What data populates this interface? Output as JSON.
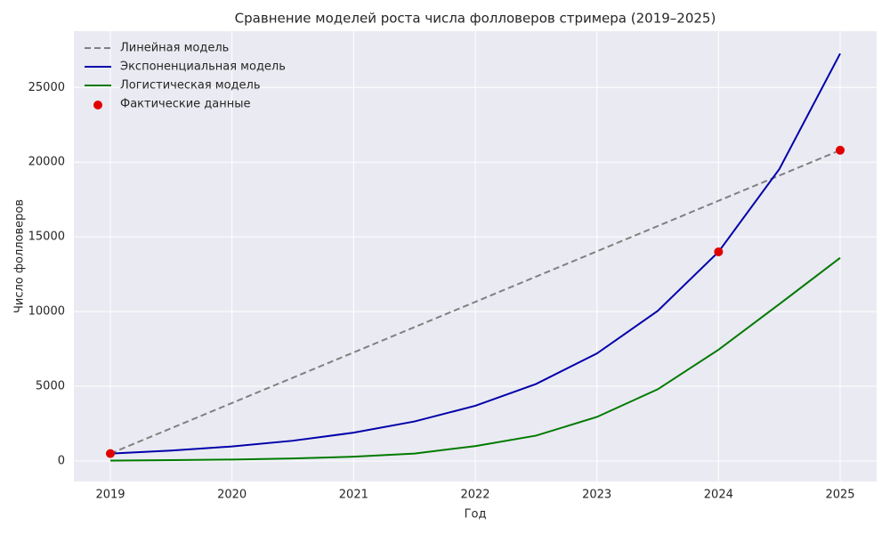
{
  "chart_data": {
    "type": "line",
    "title": "Сравнение моделей роста числа фолловеров стримера (2019–2025)",
    "x_label": "Год",
    "y_label": "Число фолловеров",
    "xlim": [
      2018.7,
      2025.3
    ],
    "ylim": [
      -1370,
      28770
    ],
    "xticks": [
      2019,
      2020,
      2021,
      2022,
      2023,
      2024,
      2025
    ],
    "yticks": [
      0,
      5000,
      10000,
      15000,
      20000,
      25000
    ],
    "grid": true,
    "legend": "upper left",
    "series": [
      {
        "name": "Линейная модель",
        "color": "#808080",
        "style": "dashed",
        "x": [
          2019,
          2025
        ],
        "values": [
          500,
          20800
        ]
      },
      {
        "name": "Экспоненциальная модель",
        "color": "#0000aa",
        "style": "solid",
        "x": [
          2019,
          2019.5,
          2020,
          2020.5,
          2021,
          2021.5,
          2022,
          2022.5,
          2023,
          2023.5,
          2024,
          2024.5,
          2025
        ],
        "values": [
          500,
          698,
          974,
          1359,
          1897,
          2647,
          3695,
          5157,
          7197,
          10045,
          14000,
          19540,
          27270
        ]
      },
      {
        "name": "Логистическая модель",
        "color": "#007a00",
        "style": "solid",
        "x": [
          2019,
          2019.5,
          2020,
          2020.5,
          2021,
          2021.5,
          2022,
          2022.5,
          2023,
          2023.5,
          2024,
          2024.5,
          2025
        ],
        "values": [
          30,
          60,
          100,
          170,
          290,
          500,
          1000,
          1700,
          2950,
          4800,
          7450,
          10500,
          13600
        ]
      },
      {
        "name": "Фактические данные",
        "color": "#e00000",
        "style": "markers",
        "x": [
          2019,
          2024,
          2025
        ],
        "values": [
          500,
          14000,
          20800
        ]
      }
    ]
  }
}
